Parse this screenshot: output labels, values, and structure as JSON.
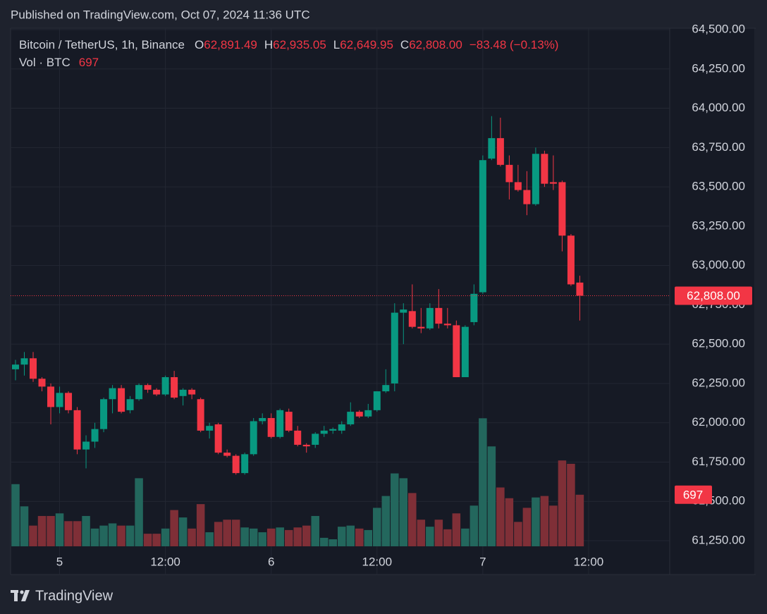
{
  "header": {
    "published": "Published on TradingView.com, Oct 07, 2024 11:36 UTC"
  },
  "footer": {
    "brand": "TradingView"
  },
  "chart_data": {
    "type": "candlestick",
    "symbol": "Bitcoin / TetherUS, 1h, Binance",
    "ohlc_legend": [
      {
        "key": "O",
        "label": "62,891.49"
      },
      {
        "key": "H",
        "label": "62,935.05"
      },
      {
        "key": "L",
        "label": "62,649.95"
      },
      {
        "key": "C",
        "label": "62,808.00"
      }
    ],
    "change": "−83.48 (−0.13%)",
    "up_color": "#089981",
    "down_color": "#f23645",
    "open": [
      62340,
      62370,
      62410,
      62280,
      62230,
      62100,
      62190,
      62080,
      61830,
      61880,
      61960,
      62150,
      62220,
      62080,
      62150,
      62240,
      62210,
      62180,
      62290,
      62170,
      62210,
      62150,
      61950,
      61990,
      61810,
      61790,
      61680,
      61800,
      62010,
      62030,
      61910,
      62070,
      61950,
      61860,
      61860,
      61930,
      61950,
      61950,
      61990,
      62070,
      62040,
      62080,
      62200,
      62250,
      62700,
      62710,
      62610,
      62600,
      62730,
      62630,
      62620,
      62290,
      62640,
      62830,
      63680,
      63810,
      63640,
      63530,
      63480,
      63390,
      63710,
      63530,
      63530,
      63190,
      62891.49
    ],
    "high": [
      62400,
      62450,
      62450,
      62290,
      62250,
      62230,
      62200,
      62100,
      61920,
      62000,
      62160,
      62240,
      62240,
      62170,
      62250,
      62250,
      62220,
      62300,
      62330,
      62220,
      62220,
      62160,
      62000,
      62000,
      61830,
      61800,
      61810,
      62030,
      62060,
      62060,
      62090,
      62090,
      61980,
      61870,
      61940,
      61980,
      61970,
      62010,
      62130,
      62080,
      62120,
      62200,
      62340,
      62760,
      62760,
      62880,
      62730,
      62760,
      62850,
      62730,
      62650,
      62620,
      62880,
      63700,
      63950,
      63940,
      63700,
      63640,
      63600,
      63750,
      63730,
      63700,
      63540,
      63200,
      62935.05
    ],
    "low": [
      62270,
      62300,
      62260,
      62200,
      61990,
      62060,
      62060,
      61800,
      61710,
      61840,
      61940,
      62060,
      62060,
      62060,
      62140,
      62190,
      62170,
      62170,
      62150,
      62110,
      62150,
      61940,
      61900,
      61800,
      61780,
      61670,
      61670,
      61790,
      61990,
      61900,
      61900,
      61940,
      61850,
      61810,
      61840,
      61910,
      61930,
      61930,
      61980,
      62030,
      62030,
      62070,
      62190,
      62200,
      62500,
      62600,
      62570,
      62590,
      62600,
      62600,
      62290,
      62290,
      62620,
      62820,
      63670,
      63630,
      63420,
      63470,
      63320,
      63380,
      63500,
      63480,
      63090,
      62870,
      62649.95
    ],
    "close": [
      62370,
      62410,
      62280,
      62230,
      62100,
      62190,
      62080,
      61830,
      61880,
      61960,
      62150,
      62220,
      62070,
      62150,
      62240,
      62210,
      62180,
      62290,
      62160,
      62210,
      62180,
      61950,
      61980,
      61810,
      61790,
      61680,
      61800,
      62010,
      62030,
      61910,
      62080,
      61950,
      61860,
      61850,
      61930,
      61950,
      61960,
      61990,
      62070,
      62040,
      62080,
      62200,
      62240,
      62700,
      62720,
      62610,
      62600,
      62730,
      62630,
      62620,
      62290,
      62610,
      62820,
      63670,
      63810,
      63640,
      63530,
      63480,
      63390,
      63710,
      63520,
      63520,
      63190,
      62880,
      62808.0
    ],
    "xlim": [
      -0.56,
      74.2
    ],
    "xticks": [
      {
        "value": 5,
        "label": "5"
      },
      {
        "value": 17,
        "label": "12:00"
      },
      {
        "value": 29,
        "label": "6"
      },
      {
        "value": 41,
        "label": "12:00"
      },
      {
        "value": 53,
        "label": "7"
      },
      {
        "value": 65,
        "label": "12:00"
      }
    ],
    "ylim": [
      61035,
      64509
    ],
    "yticks": [
      {
        "value": 61250,
        "label": "61,250.00"
      },
      {
        "value": 61500,
        "label": "61,500.00"
      },
      {
        "value": 61750,
        "label": "61,750.00"
      },
      {
        "value": 62000,
        "label": "62,000.00"
      },
      {
        "value": 62250,
        "label": "62,250.00"
      },
      {
        "value": 62500,
        "label": "62,500.00"
      },
      {
        "value": 62750,
        "label": "62,750.00"
      },
      {
        "value": 63000,
        "label": "63,000.00"
      },
      {
        "value": 63250,
        "label": "63,250.00"
      },
      {
        "value": 63500,
        "label": "63,500.00"
      },
      {
        "value": 63750,
        "label": "63,750.00"
      },
      {
        "value": 64000,
        "label": "64,000.00"
      },
      {
        "value": 64250,
        "label": "64,250.00"
      },
      {
        "value": 64500,
        "label": "64,500.00"
      }
    ],
    "grid": true,
    "last_price": {
      "value": 62808.0,
      "label": "62,808.00"
    },
    "volume": {
      "name": "Vol · BTC",
      "axis": "y2",
      "up_color": "#23675d",
      "down_color": "#7f2f37",
      "values": [
        840,
        540,
        280,
        410,
        410,
        445,
        340,
        340,
        410,
        240,
        280,
        310,
        280,
        280,
        920,
        170,
        170,
        240,
        490,
        390,
        240,
        570,
        190,
        330,
        360,
        360,
        255,
        240,
        190,
        240,
        255,
        220,
        255,
        280,
        410,
        115,
        95,
        265,
        280,
        240,
        220,
        520,
        680,
        985,
        920,
        720,
        360,
        265,
        360,
        230,
        445,
        240,
        550,
        1730,
        1350,
        795,
        650,
        330,
        520,
        660,
        680,
        550,
        1160,
        1115,
        697
      ]
    },
    "y2lim": [
      -381,
      7000
    ]
  }
}
